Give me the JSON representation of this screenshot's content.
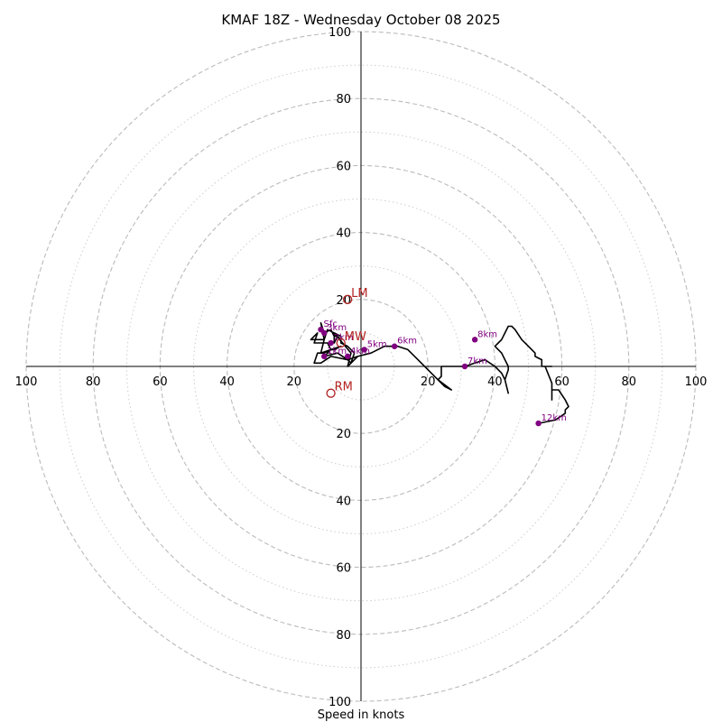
{
  "chart_data": {
    "type": "hodograph",
    "title": "KMAF 18Z - Wednesday October 08 2025",
    "xlabel": "Speed in knots",
    "ylim": [
      -100,
      100
    ],
    "xlim": [
      -100,
      100
    ],
    "rings_dashed": [
      20,
      40,
      60,
      80,
      100
    ],
    "rings_dotted": [
      10,
      30,
      50,
      70,
      90
    ],
    "tick_labels": [
      "20",
      "40",
      "60",
      "80",
      "100"
    ],
    "colors": {
      "trace": "#000000",
      "height_marker": "#800080",
      "motion_marker": "#b22222",
      "grid": "#bbbbbb"
    },
    "trace": [
      [
        -1,
        3
      ],
      [
        -4,
        0
      ],
      [
        -3,
        4
      ],
      [
        -8,
        10
      ],
      [
        -6,
        9
      ],
      [
        -10,
        11
      ],
      [
        -11,
        8
      ],
      [
        -12,
        4
      ],
      [
        -9,
        5
      ],
      [
        -10,
        7
      ],
      [
        -14,
        7
      ],
      [
        -13,
        10
      ],
      [
        -15,
        8
      ],
      [
        -11,
        8
      ],
      [
        -12,
        13
      ],
      [
        -11,
        10
      ],
      [
        -9,
        11
      ],
      [
        -8,
        9
      ],
      [
        -7,
        9
      ],
      [
        -8,
        7
      ],
      [
        -8,
        10
      ],
      [
        -6,
        8
      ],
      [
        -6,
        7
      ],
      [
        -4,
        6
      ],
      [
        -2,
        4
      ],
      [
        -3,
        1
      ],
      [
        -4,
        2
      ],
      [
        -7,
        4
      ],
      [
        -11,
        3
      ],
      [
        -9,
        5
      ],
      [
        -6,
        6
      ],
      [
        -8,
        5
      ],
      [
        -9,
        5
      ],
      [
        -11,
        4
      ],
      [
        -13,
        4
      ],
      [
        -14,
        1
      ],
      [
        -12,
        1
      ],
      [
        -9,
        3
      ],
      [
        -4,
        2
      ],
      [
        -1,
        3
      ],
      [
        -1,
        3
      ],
      [
        3,
        4
      ],
      [
        7,
        6
      ],
      [
        11,
        6
      ],
      [
        14,
        5
      ],
      [
        17,
        2
      ],
      [
        20,
        -1
      ],
      [
        23,
        -4
      ],
      [
        27,
        -7
      ],
      [
        25,
        -6
      ],
      [
        24,
        -5
      ],
      [
        23,
        -4
      ],
      [
        24,
        -3
      ],
      [
        24,
        -1
      ],
      [
        24,
        0
      ],
      [
        28,
        0
      ],
      [
        31,
        0
      ],
      [
        34,
        1
      ],
      [
        37,
        2
      ],
      [
        40,
        0
      ],
      [
        42,
        -2
      ],
      [
        43,
        -4
      ],
      [
        44,
        -8
      ],
      [
        43,
        -4
      ],
      [
        44,
        -1
      ],
      [
        44,
        0
      ],
      [
        43,
        2
      ],
      [
        42,
        4
      ],
      [
        41,
        5
      ],
      [
        40,
        6
      ],
      [
        41,
        7
      ],
      [
        42,
        8
      ],
      [
        43,
        10
      ],
      [
        44,
        12
      ],
      [
        45,
        12
      ],
      [
        46,
        11
      ],
      [
        48,
        8
      ],
      [
        50,
        6
      ],
      [
        51,
        5
      ],
      [
        52,
        4
      ],
      [
        52,
        3
      ],
      [
        54,
        2
      ],
      [
        54,
        0
      ],
      [
        57,
        0
      ],
      [
        55,
        0
      ],
      [
        57,
        -5
      ],
      [
        57,
        -7
      ],
      [
        57,
        -10
      ],
      [
        57,
        -7
      ],
      [
        59,
        -7
      ],
      [
        61,
        -10
      ],
      [
        62,
        -12
      ],
      [
        61,
        -13
      ],
      [
        61,
        -14
      ],
      [
        58,
        -16
      ],
      [
        53,
        -17
      ]
    ],
    "height_markers": [
      {
        "label": "Sfc",
        "u": -12,
        "v": 11
      },
      {
        "label": "1km",
        "u": -11,
        "v": 3
      },
      {
        "label": "2km",
        "u": -9,
        "v": 7
      },
      {
        "label": "3km",
        "u": -11,
        "v": 10
      },
      {
        "label": "4km",
        "u": -4,
        "v": 3
      },
      {
        "label": "5km",
        "u": 1,
        "v": 5
      },
      {
        "label": "6km",
        "u": 10,
        "v": 6
      },
      {
        "label": "7km",
        "u": 31,
        "v": 0
      },
      {
        "label": "8km",
        "u": 34,
        "v": 8
      },
      {
        "label": "12km",
        "u": 53,
        "v": -17
      }
    ],
    "storm_motion": [
      {
        "label": "LM",
        "u": -4,
        "v": 20
      },
      {
        "label": "RM",
        "u": -9,
        "v": -8
      },
      {
        "label": "MW",
        "u": -6,
        "v": 7
      }
    ]
  }
}
